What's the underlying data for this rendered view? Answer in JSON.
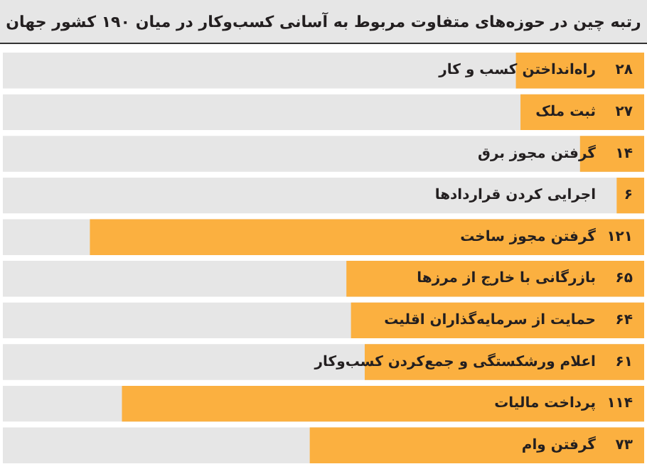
{
  "chart_data": {
    "type": "bar",
    "orientation": "horizontal",
    "title": "رتبه چین در حوزه‌های متفاوت مربوط به آسانی کسب‌وکار در میان ۱۹۰ کشور جهان",
    "categories": [
      "راه‌انداختن کسب و کار",
      "ثبت ملک",
      "گرفتن مجوز برق",
      "اجرایی کردن قراردادها",
      "گرفتن مجوز ساخت",
      "بازرگانی با خارج از مرزها",
      "حمایت از سرمایه‌گذاران اقلیت",
      "اعلام ورشکستگی و جمع‌کردن کسب‌وکار",
      "پرداخت مالیات",
      "گرفتن وام"
    ],
    "values": [
      28,
      27,
      14,
      6,
      121,
      65,
      64,
      61,
      114,
      73
    ],
    "value_labels": [
      "۲۸",
      "۲۷",
      "۱۴",
      "۶",
      "۱۲۱",
      "۶۵",
      "۶۴",
      "۶۱",
      "۱۱۴",
      "۷۳"
    ],
    "color": "#fbb040",
    "legend": false
  }
}
